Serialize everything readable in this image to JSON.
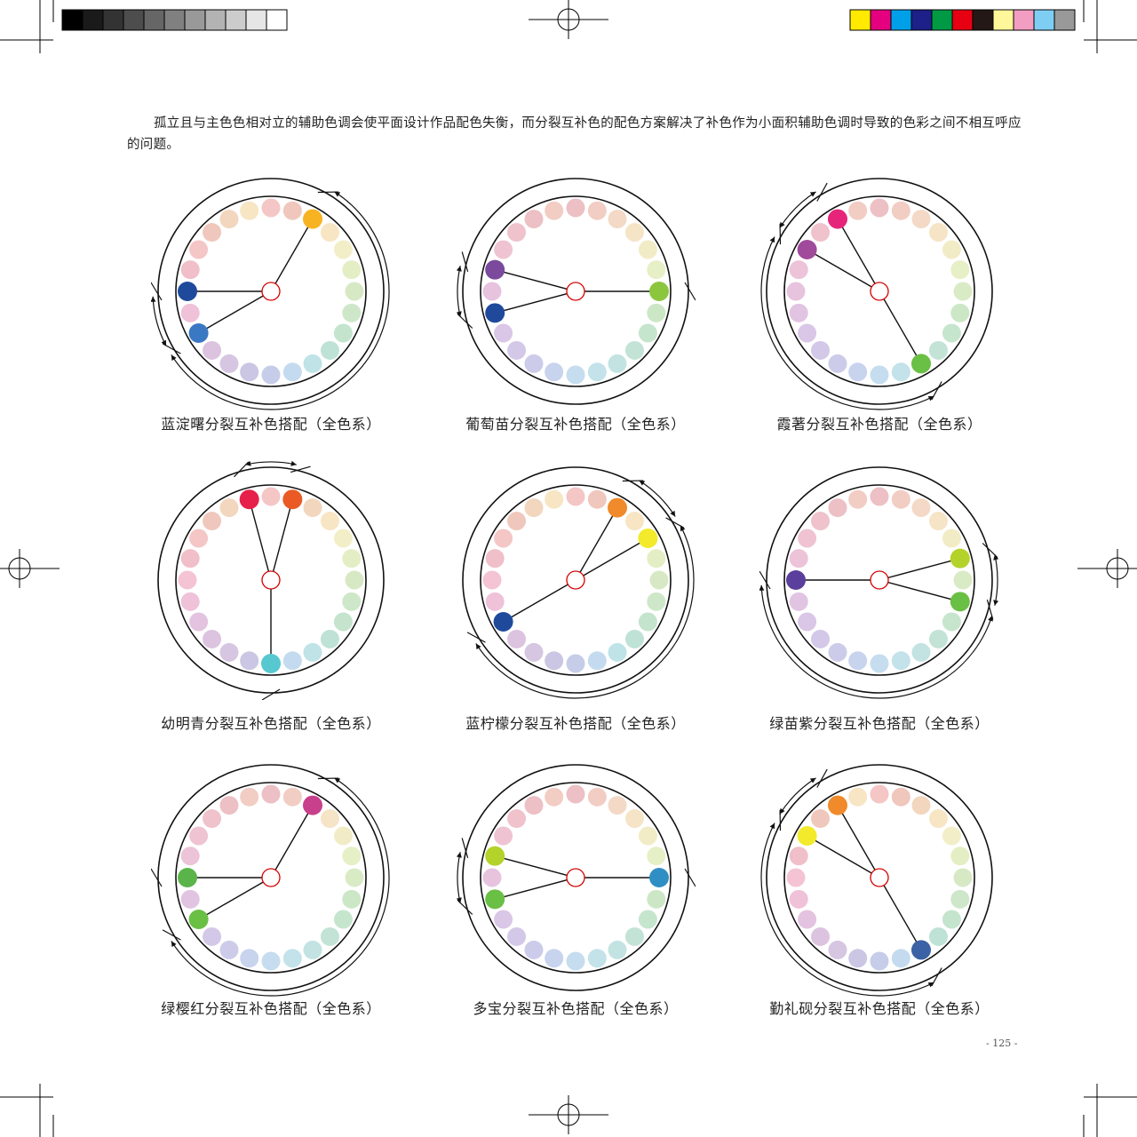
{
  "print_marks": {
    "gray_bar": [
      "#000000",
      "#1a1a1a",
      "#333333",
      "#4d4d4d",
      "#666666",
      "#808080",
      "#999999",
      "#b3b3b3",
      "#cccccc",
      "#e6e6e6",
      "#ffffff"
    ],
    "color_bar": [
      "#ffea00",
      "#e4007f",
      "#00a0e9",
      "#1d2088",
      "#009944",
      "#e60012",
      "#231815",
      "#fff799",
      "#f19ec2",
      "#7ecef4",
      "#999999"
    ]
  },
  "paragraph": "孤立且与主色色相对立的辅助色调会使平面设计作品配色失衡，而分裂互补色的配色方案解决了补色作为小面积辅助色调时导致的色彩之间不相互呼应的问题。",
  "palette": {
    "standard": [
      "#f4c6c6",
      "#f0c7bc",
      "#f2d6be",
      "#f7e5c4",
      "#f2efc8",
      "#e4eec4",
      "#d6e9c4",
      "#cfe7c9",
      "#c4e4cd",
      "#bfe2d6",
      "#bfe3e7",
      "#c4dbef",
      "#c6cde9",
      "#cbc6e3",
      "#d6c6e2",
      "#dcc3df",
      "#e3c3df",
      "#efc2d9",
      "#f4c4d4",
      "#f0bfc9",
      "#f4c6c6",
      "#f0c7bc",
      "#f2d6be",
      "#f7e5c4"
    ],
    "spectral": [
      "#ecc0c4",
      "#f2cdc4",
      "#f3d9c6",
      "#f5e4c6",
      "#f1ecc6",
      "#e7efc6",
      "#d9ebc5",
      "#cce7c6",
      "#c6e5cd",
      "#c2e3d5",
      "#c2e3e1",
      "#c3e2ea",
      "#c5ddef",
      "#c8d3ee",
      "#ccccea",
      "#d3c8e8",
      "#dac6e6",
      "#e1c4e2",
      "#e7c3de",
      "#ecc3d8",
      "#efc3d2",
      "#efc2cc",
      "#ecc0c4",
      "#f2cdc4"
    ]
  },
  "figures": [
    {
      "caption": "蓝淀曙分裂互补色搭配（全色系）",
      "palette": "standard",
      "highlights": [
        {
          "slot": 2,
          "color": "#f8b323"
        },
        {
          "slot": 16,
          "color": "#3a78c4"
        },
        {
          "slot": 18,
          "color": "#1f4a9c"
        }
      ],
      "arcs": [
        {
          "from": 2,
          "to": 16,
          "dir": "cw"
        },
        {
          "from": 16,
          "to": 18,
          "dir": "cw"
        }
      ]
    },
    {
      "caption": "葡萄苗分裂互补色搭配（全色系）",
      "palette": "spectral",
      "highlights": [
        {
          "slot": 6,
          "color": "#8cc63f"
        },
        {
          "slot": 17,
          "color": "#1f4a9c"
        },
        {
          "slot": 19,
          "color": "#7b4a9c"
        }
      ],
      "arcs": [
        {
          "from": 19,
          "to": 17,
          "dir": "ccw"
        }
      ]
    },
    {
      "caption": "霞著分裂互补色搭配（全色系）",
      "palette": "spectral",
      "highlights": [
        {
          "slot": 10,
          "color": "#6abf45"
        },
        {
          "slot": 20,
          "color": "#a04a9c"
        },
        {
          "slot": 22,
          "color": "#e6247a"
        }
      ],
      "arcs": [
        {
          "from": 22,
          "to": 20,
          "dir": "ccw"
        },
        {
          "from": 10,
          "to": 20,
          "dir": "cw"
        }
      ]
    },
    {
      "caption": "幼明青分裂互补色搭配（全色系）",
      "palette": "standard",
      "highlights": [
        {
          "slot": 23,
          "color": "#e6204a"
        },
        {
          "slot": 1,
          "color": "#ea5a24"
        },
        {
          "slot": 12,
          "color": "#58c8d0"
        }
      ],
      "arcs": [
        {
          "from": 23,
          "to": 1,
          "dir": "cw"
        }
      ]
    },
    {
      "caption": "蓝柠檬分裂互补色搭配（全色系）",
      "palette": "standard",
      "highlights": [
        {
          "slot": 2,
          "color": "#f08a2a"
        },
        {
          "slot": 4,
          "color": "#f2ea2a"
        },
        {
          "slot": 16,
          "color": "#1f4a9c"
        }
      ],
      "arcs": [
        {
          "from": 2,
          "to": 4,
          "dir": "cw"
        },
        {
          "from": 4,
          "to": 16,
          "dir": "cw"
        }
      ]
    },
    {
      "caption": "绿苗紫分裂互补色搭配（全色系）",
      "palette": "spectral",
      "highlights": [
        {
          "slot": 5,
          "color": "#b4d22a"
        },
        {
          "slot": 7,
          "color": "#6abf45"
        },
        {
          "slot": 18,
          "color": "#5a3f9c"
        }
      ],
      "arcs": [
        {
          "from": 5,
          "to": 7,
          "dir": "cw"
        },
        {
          "from": 7,
          "to": 18,
          "dir": "cw"
        }
      ]
    },
    {
      "caption": "绿樱红分裂互补色搭配（全色系）",
      "palette": "spectral",
      "highlights": [
        {
          "slot": 2,
          "color": "#c8408c"
        },
        {
          "slot": 16,
          "color": "#6abf45"
        },
        {
          "slot": 18,
          "color": "#5ab44a"
        }
      ],
      "arcs": [
        {
          "from": 2,
          "to": 16,
          "dir": "cw"
        }
      ]
    },
    {
      "caption": "多宝分裂互补色搭配（全色系）",
      "palette": "spectral",
      "highlights": [
        {
          "slot": 6,
          "color": "#2f8fc4"
        },
        {
          "slot": 17,
          "color": "#6abf45"
        },
        {
          "slot": 19,
          "color": "#b4d22a"
        }
      ],
      "arcs": [
        {
          "from": 19,
          "to": 17,
          "dir": "ccw"
        }
      ]
    },
    {
      "caption": "勤礼砚分裂互补色搭配（全色系）",
      "palette": "standard",
      "highlights": [
        {
          "slot": 10,
          "color": "#3a62a4"
        },
        {
          "slot": 20,
          "color": "#f2ea2a"
        },
        {
          "slot": 22,
          "color": "#f08a2a"
        }
      ],
      "arcs": [
        {
          "from": 22,
          "to": 20,
          "dir": "ccw"
        },
        {
          "from": 10,
          "to": 20,
          "dir": "cw"
        }
      ]
    }
  ],
  "page_number": "- 125 -"
}
